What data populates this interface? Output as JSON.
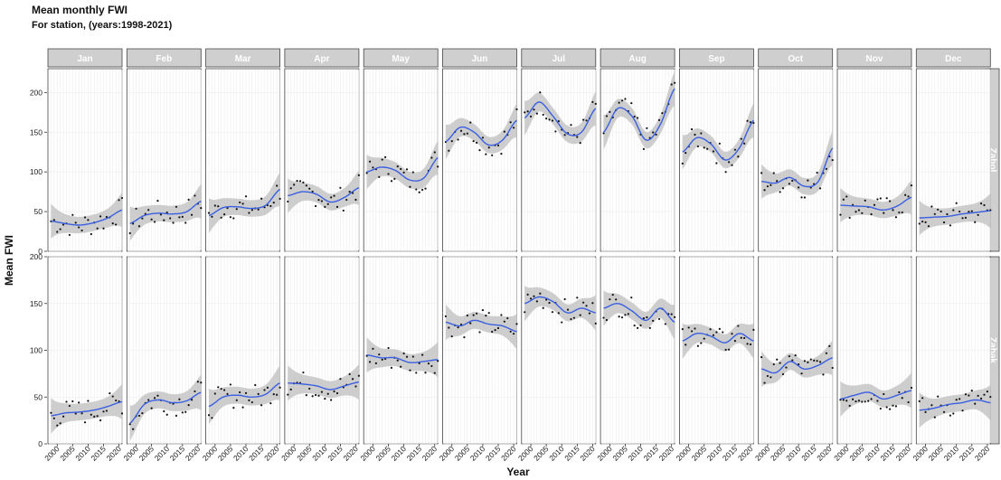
{
  "title": "Mean monthly FWI",
  "subtitle": "For station, (years:1998-2021)",
  "colors": {
    "smooth_line": "#3a5fe0",
    "ribbon": "#bdbdbd",
    "points": "#111111",
    "strip_bg": "#cfcfcf",
    "grid": "#ececec"
  },
  "chart_data": {
    "type": "scatter",
    "subtype": "faceted scatter with loess smooth and confidence band",
    "xlabel": "Year",
    "ylabel": "Mean FWI",
    "x_ticks": [
      2000,
      2005,
      2010,
      2015,
      2020
    ],
    "x_range": [
      1997,
      2021
    ],
    "columns": [
      "Jan",
      "Feb",
      "Mar",
      "Apr",
      "May",
      "Jun",
      "Jul",
      "Aug",
      "Sep",
      "Oct",
      "Nov",
      "Dec"
    ],
    "rows": [
      {
        "name": "Zabol",
        "ylim": [
          0,
          230
        ],
        "y_ticks": [
          0,
          50,
          100,
          150,
          200
        ]
      },
      {
        "name": "Zahak",
        "ylim": [
          0,
          200
        ],
        "y_ticks": [
          0,
          50,
          100,
          150,
          200
        ]
      }
    ],
    "smooth": {
      "Zabol": {
        "Jan": [
          38,
          35,
          33,
          36,
          42,
          52
        ],
        "Feb": [
          35,
          45,
          48,
          47,
          50,
          63
        ],
        "Mar": [
          45,
          55,
          56,
          54,
          58,
          78
        ],
        "Apr": [
          70,
          75,
          72,
          62,
          68,
          80
        ],
        "May": [
          100,
          106,
          102,
          90,
          92,
          118
        ],
        "Jun": [
          138,
          156,
          150,
          134,
          140,
          165
        ],
        "Jul": [
          168,
          188,
          170,
          148,
          150,
          180
        ],
        "Aug": [
          150,
          180,
          170,
          140,
          160,
          205
        ],
        "Sep": [
          125,
          143,
          135,
          115,
          130,
          165
        ],
        "Oct": [
          88,
          86,
          93,
          82,
          88,
          130
        ],
        "Nov": [
          58,
          57,
          56,
          52,
          57,
          68
        ],
        "Dec": [
          42,
          43,
          44,
          47,
          49,
          51
        ]
      },
      "Zahak": {
        "Jan": [
          30,
          33,
          34,
          36,
          40,
          45
        ],
        "Feb": [
          22,
          42,
          47,
          44,
          46,
          55
        ],
        "Mar": [
          40,
          50,
          52,
          50,
          53,
          65
        ],
        "Apr": [
          65,
          64,
          62,
          58,
          62,
          66
        ],
        "May": [
          95,
          92,
          92,
          87,
          88,
          90
        ],
        "Jun": [
          130,
          126,
          132,
          128,
          126,
          120
        ],
        "Jul": [
          150,
          157,
          152,
          140,
          145,
          140
        ],
        "Aug": [
          145,
          150,
          142,
          132,
          145,
          130
        ],
        "Sep": [
          110,
          118,
          115,
          108,
          118,
          110
        ],
        "Oct": [
          80,
          76,
          88,
          80,
          84,
          92
        ],
        "Nov": [
          48,
          52,
          55,
          48,
          52,
          57
        ],
        "Dec": [
          36,
          38,
          42,
          44,
          47,
          44
        ]
      }
    }
  }
}
